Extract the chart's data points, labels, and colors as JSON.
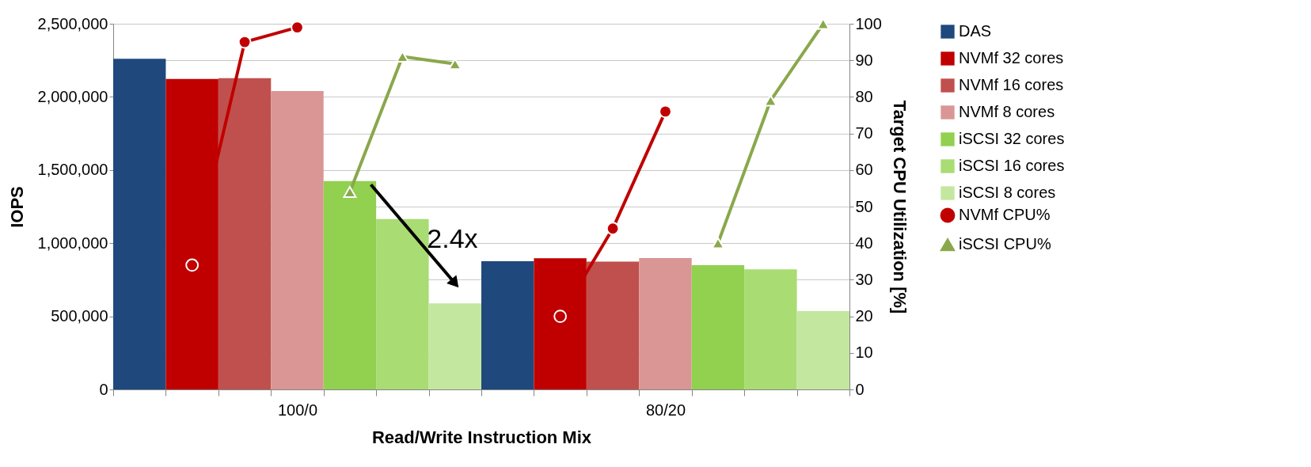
{
  "chart_data": {
    "type": "bar",
    "categories": [
      null,
      null,
      null,
      "100/0",
      null,
      null,
      null,
      null,
      null,
      null,
      "80/20",
      null,
      null,
      null
    ],
    "xlabel": "Read/Write Instruction Mix",
    "ylabel": "IOPS",
    "y2label": "Target CPU Utilization [%]",
    "ylim": [
      0,
      2500000
    ],
    "yticks": [
      {
        "value": 0,
        "label": "0"
      },
      {
        "value": 500000,
        "label": "500,000"
      },
      {
        "value": 1000000,
        "label": "1,000,000"
      },
      {
        "value": 1500000,
        "label": "1,500,000"
      },
      {
        "value": 2000000,
        "label": "2,000,000"
      },
      {
        "value": 2500000,
        "label": "2,500,000"
      }
    ],
    "y2lim": [
      0,
      100
    ],
    "y2ticks": [
      0,
      10,
      20,
      30,
      40,
      50,
      60,
      70,
      80,
      90,
      100
    ],
    "grid": "y",
    "legend": "right",
    "series": [
      {
        "name": "DAS",
        "color": "#1f497d",
        "values": [
          2260000,
          null,
          null,
          null,
          null,
          null,
          null,
          877000,
          null,
          null,
          null,
          null,
          null,
          null
        ]
      },
      {
        "name": "NVMf 32 cores",
        "color": "#c00000",
        "values": [
          null,
          2123000,
          null,
          null,
          null,
          null,
          null,
          null,
          897000,
          null,
          null,
          null,
          null,
          null
        ]
      },
      {
        "name": "NVMf 16 cores",
        "color": "#c0504d",
        "values": [
          null,
          null,
          2128000,
          null,
          null,
          null,
          null,
          null,
          null,
          874000,
          null,
          null,
          null,
          null
        ]
      },
      {
        "name": "NVMf 8 cores",
        "color": "#d99694",
        "values": [
          null,
          null,
          null,
          2040000,
          null,
          null,
          null,
          null,
          null,
          null,
          898000,
          null,
          null,
          null
        ]
      },
      {
        "name": "iSCSI 32 cores",
        "color": "#92d050",
        "values": [
          null,
          null,
          null,
          null,
          1425000,
          null,
          null,
          null,
          null,
          null,
          null,
          850000,
          null,
          null
        ]
      },
      {
        "name": "iSCSI 16 cores",
        "color": "#a9dc73",
        "values": [
          null,
          null,
          null,
          null,
          null,
          1165000,
          null,
          null,
          null,
          null,
          null,
          null,
          821000,
          null
        ]
      },
      {
        "name": "iSCSI 8 cores",
        "color": "#c4e79f",
        "values": [
          null,
          null,
          null,
          null,
          null,
          null,
          588000,
          null,
          null,
          null,
          null,
          null,
          null,
          536000
        ]
      },
      {
        "name": "NVMf CPU%",
        "type": "line",
        "axis": "y2",
        "marker": "circle",
        "color": "#c00000",
        "values": [
          null,
          34,
          95,
          99,
          null,
          null,
          null,
          null,
          20,
          44,
          76,
          null,
          null,
          null
        ]
      },
      {
        "name": "iSCSI CPU%",
        "type": "line",
        "axis": "y2",
        "marker": "triangle",
        "color": "#8aa84b",
        "values": [
          null,
          null,
          null,
          null,
          54,
          91,
          89,
          null,
          null,
          null,
          null,
          40,
          79,
          100
        ]
      }
    ],
    "annotations": [
      "2.4x"
    ]
  }
}
